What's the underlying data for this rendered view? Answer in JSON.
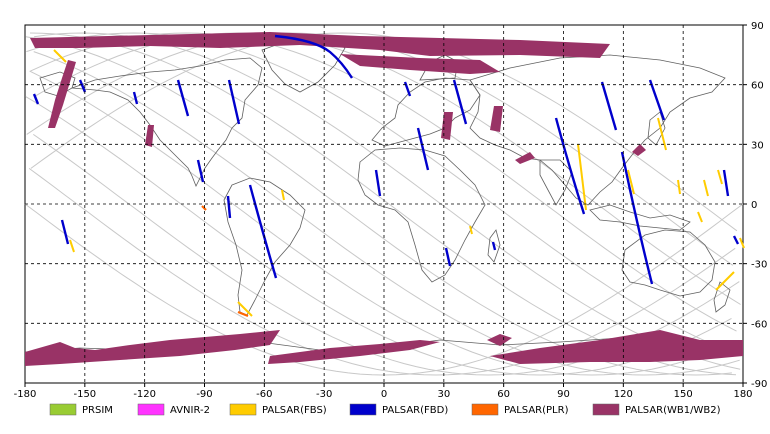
{
  "map": {
    "x_ticks": [
      "-180",
      "-150",
      "-120",
      "-90",
      "-60",
      "-30",
      "0",
      "30",
      "60",
      "90",
      "120",
      "150",
      "180"
    ],
    "y_ticks": [
      "90",
      "60",
      "30",
      "0",
      "-30",
      "-60",
      "-90"
    ]
  },
  "legend": [
    {
      "label": "PRSIM",
      "color": "#99cc33"
    },
    {
      "label": "AVNIR-2",
      "color": "#ff33ff"
    },
    {
      "label": "PALSAR(FBS)",
      "color": "#ffcc00"
    },
    {
      "label": "PALSAR(FBD)",
      "color": "#0000cc"
    },
    {
      "label": "PALSAR(PLR)",
      "color": "#ff6600"
    },
    {
      "label": "PALSAR(WB1/WB2)",
      "color": "#993366"
    }
  ]
}
